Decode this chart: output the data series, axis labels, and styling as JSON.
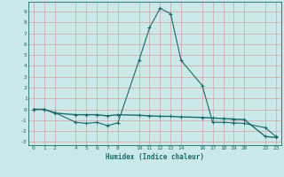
{
  "xlabel": "Humidex (Indice chaleur)",
  "background_color": "#cce9e9",
  "grid_color": "#b0d8d8",
  "line_color": "#1a6b6b",
  "series1_x": [
    0,
    1,
    2,
    4,
    5,
    6,
    7,
    8,
    10,
    11,
    12,
    13,
    14,
    16,
    17,
    18,
    19,
    20,
    22,
    23
  ],
  "series1_y": [
    0.0,
    0.0,
    -0.3,
    -1.2,
    -1.3,
    -1.2,
    -1.5,
    -1.25,
    4.5,
    7.5,
    9.3,
    8.8,
    4.5,
    2.2,
    -1.2,
    -1.2,
    -1.25,
    -1.3,
    -1.7,
    -2.5
  ],
  "series2_x": [
    0,
    1,
    2,
    4,
    5,
    6,
    7,
    8,
    10,
    11,
    12,
    13,
    14,
    16,
    17,
    18,
    19,
    20,
    22,
    23
  ],
  "series2_y": [
    0.0,
    0.0,
    -0.35,
    -0.5,
    -0.5,
    -0.5,
    -0.6,
    -0.5,
    -0.55,
    -0.6,
    -0.65,
    -0.65,
    -0.7,
    -0.75,
    -0.8,
    -0.85,
    -0.9,
    -0.95,
    -2.5,
    -2.6
  ],
  "xlim": [
    -0.5,
    23.5
  ],
  "ylim": [
    -3.3,
    9.9
  ],
  "yticks": [
    -3,
    -2,
    -1,
    0,
    1,
    2,
    3,
    4,
    5,
    6,
    7,
    8,
    9
  ],
  "xticks": [
    0,
    1,
    2,
    4,
    5,
    6,
    7,
    8,
    10,
    11,
    12,
    13,
    14,
    16,
    17,
    18,
    19,
    20,
    22,
    23
  ]
}
